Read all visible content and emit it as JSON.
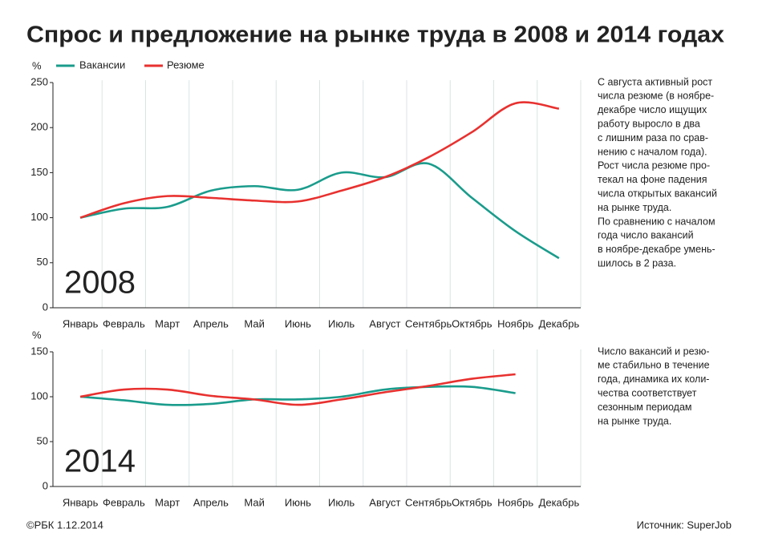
{
  "title": "Спрос и предложение на рынке труда в 2008 и 2014 годах",
  "footer": {
    "copyright": "©РБК 1.12.2014",
    "source": "Источник: SuperJob"
  },
  "chart_data": [
    {
      "type": "line",
      "annotation": "2008",
      "y_unit": "%",
      "categories": [
        "Январь",
        "Февраль",
        "Март",
        "Апрель",
        "Май",
        "Июнь",
        "Июль",
        "Август",
        "Сентябрь",
        "Октябрь",
        "Ноябрь",
        "Декабрь"
      ],
      "series": [
        {
          "name": "Вакансии",
          "color": "#1a9c8c",
          "values": [
            100,
            110,
            112,
            130,
            135,
            131,
            150,
            145,
            160,
            122,
            85,
            55
          ]
        },
        {
          "name": "Резюме",
          "color": "#e8312f",
          "values": [
            100,
            116,
            124,
            122,
            119,
            118,
            130,
            145,
            167,
            195,
            227,
            221
          ]
        }
      ],
      "ylim": [
        0,
        250
      ],
      "yticks": [
        0,
        50,
        100,
        150,
        200,
        250
      ],
      "note": [
        "С августа активный рост",
        "числа резюме (в ноябре-",
        "декабре число ищущих",
        "работу выросло в два",
        "с лишним раза по срав-",
        "нению с началом года).",
        "Рост числа резюме про-",
        "текал на фоне падения",
        "числа открытых вакансий",
        "на рынке труда.",
        "По сравнению с началом",
        "года число вакансий",
        "в ноябре-декабре умень-",
        "шилось в 2 раза."
      ]
    },
    {
      "type": "line",
      "annotation": "2014",
      "y_unit": "%",
      "categories": [
        "Январь",
        "Февраль",
        "Март",
        "Апрель",
        "Май",
        "Июнь",
        "Июль",
        "Август",
        "Сентябрь",
        "Октябрь",
        "Ноябрь",
        "Декабрь"
      ],
      "series": [
        {
          "name": "Вакансии",
          "color": "#1a9c8c",
          "values": [
            100,
            96,
            91,
            92,
            97,
            97,
            100,
            108,
            111,
            111,
            104,
            null
          ]
        },
        {
          "name": "Резюме",
          "color": "#e8312f",
          "values": [
            100,
            108,
            108,
            101,
            97,
            91,
            97,
            105,
            112,
            120,
            125,
            null
          ]
        }
      ],
      "ylim": [
        0,
        150
      ],
      "yticks": [
        0,
        50,
        100,
        150
      ],
      "note": [
        "Число вакансий и резю-",
        "ме стабильно в течение",
        "года, динамика их коли-",
        "чества соответствует",
        "сезонным периодам",
        "на рынке труда."
      ]
    }
  ]
}
